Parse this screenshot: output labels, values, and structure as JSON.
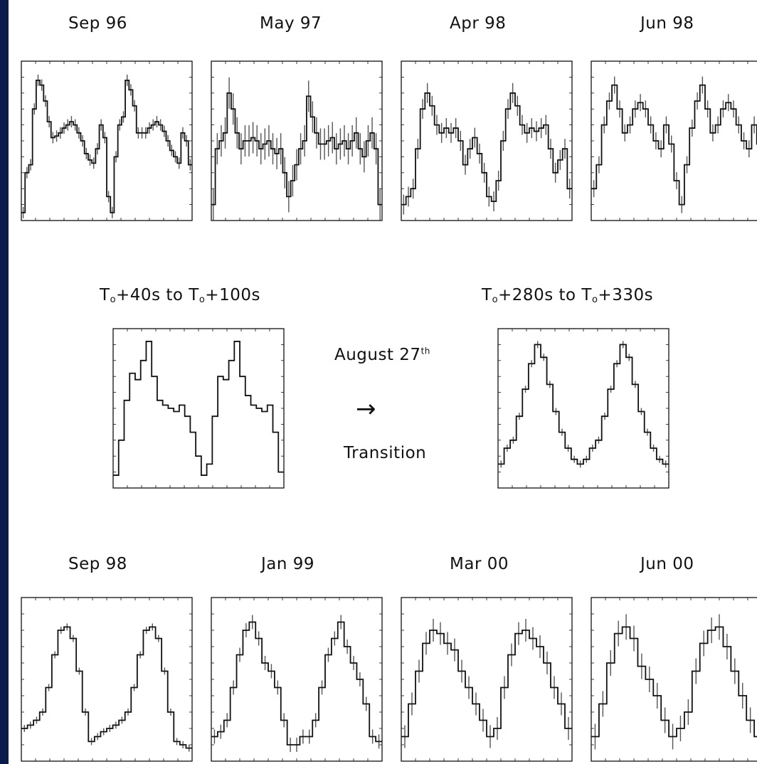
{
  "colors": {
    "frame_background": "#0a1a4a",
    "panel_background": "#ffffff",
    "ink": "#111111",
    "error_bars": "#555555"
  },
  "top_row_titles": [
    "Sep 96",
    "May 97",
    "Apr 98",
    "Jun 98"
  ],
  "middle": {
    "left_title": {
      "prefix": "T",
      "sub": "o",
      "part1": "+40s to T",
      "sub2": "o",
      "part2": "+100s"
    },
    "right_title": {
      "prefix": "T",
      "sub": "o",
      "part1": "+280s to T",
      "sub2": "o",
      "part2": "+330s"
    },
    "annotation_month": "August 27",
    "annotation_sup": "th",
    "annotation_arrow": "→",
    "annotation_transition": "Transition"
  },
  "bottom_row_titles": [
    "Sep 98",
    "Jan 99",
    "Mar 00",
    "Jun 00"
  ],
  "chart_data": [
    {
      "type": "line",
      "title": "Sep 96",
      "xlabel": "",
      "ylabel": "",
      "grid": false,
      "series": [
        {
          "values": [
            0.05,
            0.3,
            0.35,
            0.7,
            0.88,
            0.85,
            0.75,
            0.62,
            0.52,
            0.53,
            0.55,
            0.58,
            0.6,
            0.62,
            0.6,
            0.55,
            0.5,
            0.42,
            0.38,
            0.36,
            0.45,
            0.6,
            0.52,
            0.15,
            0.05,
            0.4,
            0.6,
            0.65,
            0.88,
            0.82,
            0.72,
            0.55,
            0.55,
            0.55,
            0.58,
            0.6,
            0.62,
            0.6,
            0.56,
            0.5,
            0.44,
            0.4,
            0.36,
            0.55,
            0.5,
            0.35
          ]
        }
      ]
    },
    {
      "type": "line",
      "title": "May 97",
      "xlabel": "",
      "ylabel": "",
      "grid": false,
      "series": [
        {
          "values": [
            0.1,
            0.45,
            0.5,
            0.55,
            0.8,
            0.7,
            0.55,
            0.45,
            0.5,
            0.5,
            0.52,
            0.5,
            0.45,
            0.48,
            0.5,
            0.45,
            0.42,
            0.45,
            0.3,
            0.15,
            0.25,
            0.35,
            0.45,
            0.5,
            0.78,
            0.65,
            0.55,
            0.48,
            0.48,
            0.5,
            0.52,
            0.45,
            0.48,
            0.5,
            0.45,
            0.5,
            0.55,
            0.45,
            0.4,
            0.5,
            0.55,
            0.45,
            0.1
          ]
        }
      ]
    },
    {
      "type": "line",
      "title": "Apr 98",
      "xlabel": "",
      "ylabel": "",
      "grid": false,
      "series": [
        {
          "values": [
            0.1,
            0.15,
            0.2,
            0.45,
            0.7,
            0.8,
            0.72,
            0.6,
            0.55,
            0.58,
            0.55,
            0.58,
            0.5,
            0.35,
            0.45,
            0.52,
            0.42,
            0.3,
            0.15,
            0.12,
            0.25,
            0.5,
            0.7,
            0.8,
            0.72,
            0.6,
            0.55,
            0.58,
            0.56,
            0.58,
            0.6,
            0.45,
            0.3,
            0.38,
            0.45,
            0.2
          ]
        }
      ]
    },
    {
      "type": "line",
      "title": "Jun 98",
      "xlabel": "",
      "ylabel": "",
      "grid": false,
      "series": [
        {
          "values": [
            0.2,
            0.35,
            0.6,
            0.75,
            0.85,
            0.7,
            0.55,
            0.6,
            0.7,
            0.74,
            0.7,
            0.6,
            0.5,
            0.45,
            0.6,
            0.48,
            0.25,
            0.1,
            0.35,
            0.58,
            0.75,
            0.85,
            0.7,
            0.55,
            0.6,
            0.7,
            0.74,
            0.7,
            0.6,
            0.5,
            0.45,
            0.6,
            0.48
          ]
        }
      ]
    },
    {
      "type": "line",
      "title": "T₀+40s to T₀+100s",
      "xlabel": "",
      "ylabel": "",
      "grid": false,
      "series": [
        {
          "values": [
            0.08,
            0.3,
            0.55,
            0.72,
            0.68,
            0.8,
            0.92,
            0.7,
            0.55,
            0.52,
            0.5,
            0.48,
            0.52,
            0.45,
            0.35,
            0.2,
            0.08,
            0.15,
            0.45,
            0.7,
            0.68,
            0.8,
            0.92,
            0.7,
            0.58,
            0.52,
            0.5,
            0.48,
            0.52,
            0.35,
            0.1
          ]
        }
      ]
    },
    {
      "type": "line",
      "title": "T₀+280s to T₀+330s",
      "xlabel": "",
      "ylabel": "",
      "grid": false,
      "series": [
        {
          "values": [
            0.15,
            0.25,
            0.3,
            0.45,
            0.62,
            0.78,
            0.9,
            0.82,
            0.65,
            0.48,
            0.35,
            0.25,
            0.18,
            0.15,
            0.18,
            0.25,
            0.3,
            0.45,
            0.62,
            0.78,
            0.9,
            0.82,
            0.65,
            0.48,
            0.35,
            0.25,
            0.18,
            0.15
          ]
        }
      ]
    },
    {
      "type": "line",
      "title": "Sep 98",
      "xlabel": "",
      "ylabel": "",
      "grid": false,
      "series": [
        {
          "values": [
            0.2,
            0.22,
            0.25,
            0.3,
            0.45,
            0.65,
            0.8,
            0.82,
            0.75,
            0.55,
            0.3,
            0.12,
            0.15,
            0.18,
            0.2,
            0.22,
            0.25,
            0.3,
            0.45,
            0.65,
            0.8,
            0.82,
            0.75,
            0.55,
            0.3,
            0.12,
            0.1,
            0.08
          ]
        }
      ]
    },
    {
      "type": "line",
      "title": "Jan 99",
      "xlabel": "",
      "ylabel": "",
      "grid": false,
      "series": [
        {
          "values": [
            0.15,
            0.18,
            0.25,
            0.45,
            0.65,
            0.8,
            0.85,
            0.75,
            0.6,
            0.55,
            0.45,
            0.25,
            0.1,
            0.1,
            0.15,
            0.15,
            0.25,
            0.45,
            0.65,
            0.75,
            0.85,
            0.7,
            0.6,
            0.5,
            0.35,
            0.15,
            0.12
          ]
        }
      ]
    },
    {
      "type": "line",
      "title": "Mar 00",
      "xlabel": "",
      "ylabel": "",
      "grid": false,
      "series": [
        {
          "values": [
            0.15,
            0.35,
            0.55,
            0.72,
            0.8,
            0.78,
            0.72,
            0.68,
            0.55,
            0.45,
            0.35,
            0.25,
            0.15,
            0.2,
            0.45,
            0.65,
            0.78,
            0.8,
            0.75,
            0.7,
            0.6,
            0.45,
            0.35,
            0.2
          ]
        }
      ]
    },
    {
      "type": "line",
      "title": "Jun 00",
      "xlabel": "",
      "ylabel": "",
      "grid": false,
      "series": [
        {
          "values": [
            0.15,
            0.35,
            0.6,
            0.78,
            0.82,
            0.75,
            0.58,
            0.5,
            0.4,
            0.25,
            0.15,
            0.2,
            0.3,
            0.55,
            0.72,
            0.8,
            0.82,
            0.7,
            0.55,
            0.4,
            0.25,
            0.15
          ]
        }
      ]
    }
  ]
}
